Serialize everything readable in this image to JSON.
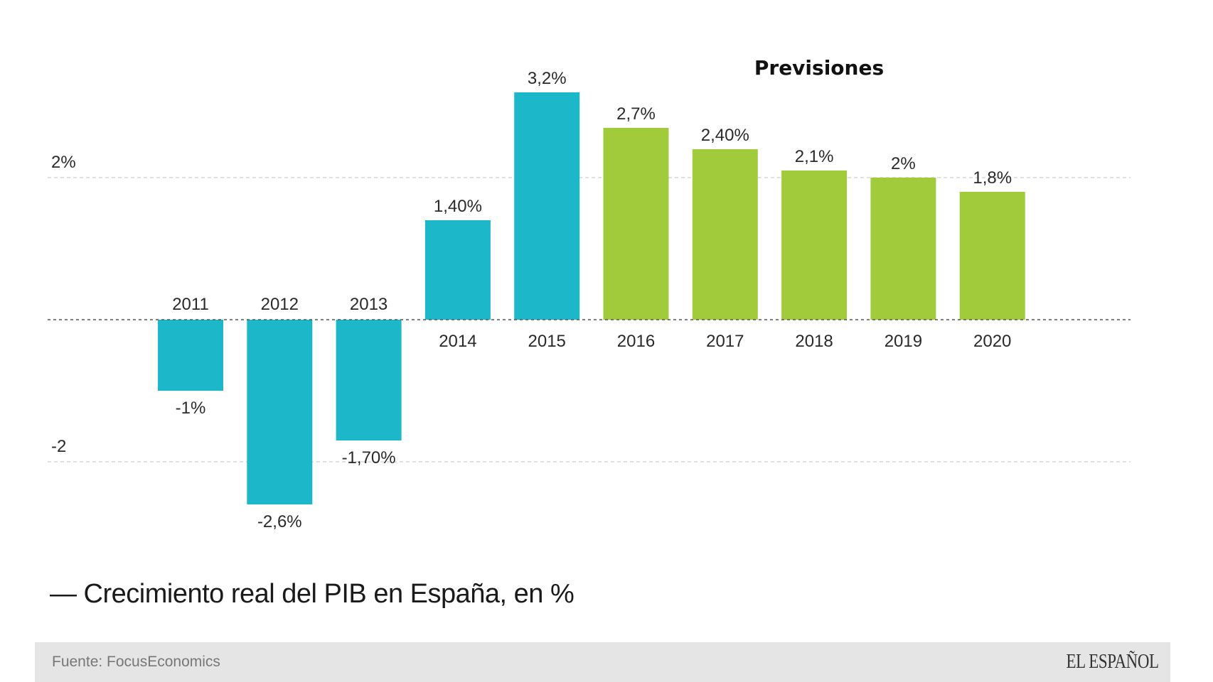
{
  "chart_data": {
    "type": "bar",
    "title": "— Crecimiento real del PIB en España, en %",
    "xlabel": "",
    "ylabel": "",
    "ylim": [
      -2.6,
      3.2
    ],
    "grid": true,
    "categories": [
      "2011",
      "2012",
      "2013",
      "2014",
      "2015",
      "2016",
      "2017",
      "2018",
      "2019",
      "2020"
    ],
    "series": [
      {
        "name": "Crecimiento real del PIB",
        "values": [
          -1.0,
          -2.6,
          -1.7,
          1.4,
          3.2,
          2.7,
          2.4,
          2.1,
          2.0,
          1.8
        ]
      }
    ],
    "value_labels": [
      "-1%",
      "-2,6%",
      "-1,70%",
      "1,40%",
      "3,2%",
      "2,7%",
      "2,40%",
      "2,1%",
      "2%",
      "1,8%"
    ],
    "forecast": [
      false,
      false,
      false,
      false,
      false,
      true,
      true,
      true,
      true,
      true
    ],
    "colors": {
      "actual": "#1cb8ca",
      "forecast": "#a2cb3b"
    },
    "y_ticks": [
      {
        "value": 2,
        "label": "2%"
      },
      {
        "value": -2,
        "label": "-2"
      }
    ],
    "annotations": [
      {
        "text": "Previsiones",
        "over": "2016-2020"
      }
    ]
  },
  "footer": {
    "source": "Fuente: FocusEconomics",
    "logo": "EL ESPAÑOL"
  }
}
